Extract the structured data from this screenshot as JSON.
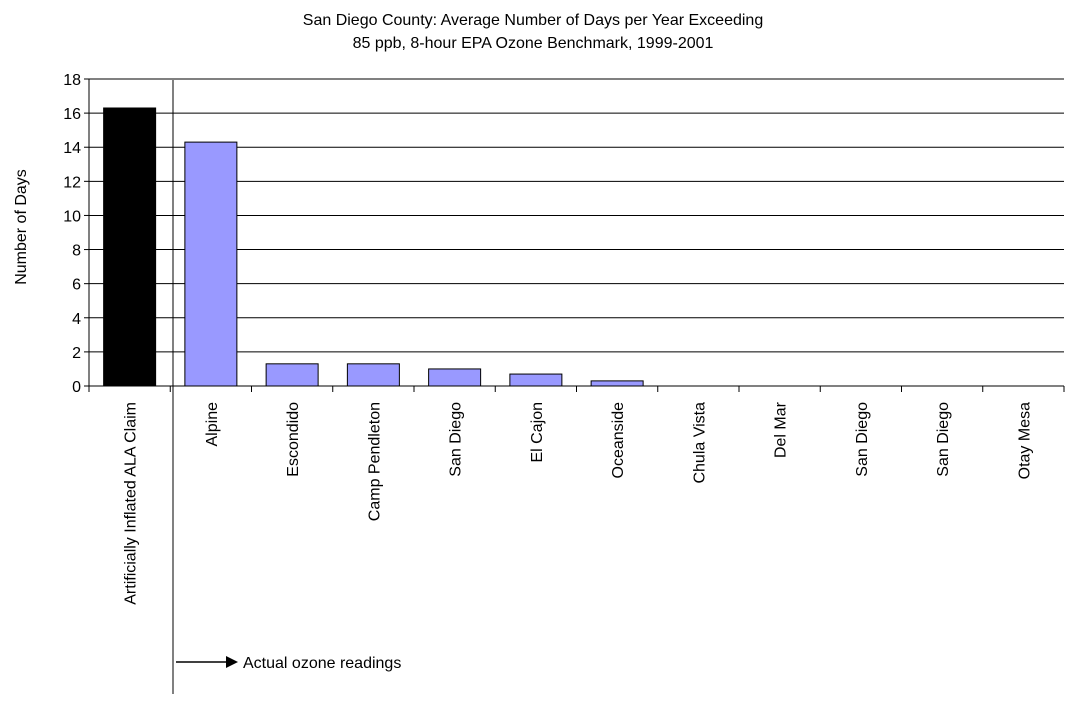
{
  "chart_data": {
    "type": "bar",
    "title_line1": "San Diego County: Average Number of Days per Year Exceeding",
    "title_line2": "85 ppb, 8-hour EPA Ozone Benchmark, 1999-2001",
    "xlabel": "",
    "ylabel": "Number of Days",
    "ylim": [
      0,
      18
    ],
    "yticks": [
      "0",
      "2",
      "4",
      "6",
      "8",
      "10",
      "12",
      "14",
      "16",
      "18"
    ],
    "grid": true,
    "legend": "none",
    "categories": [
      "Artificially Inflated ALA Claim",
      "Alpine",
      "Escondido",
      "Camp Pendleton",
      "San Diego",
      "El Cajon",
      "Oceanside",
      "Chula Vista",
      "Del Mar",
      "San Diego",
      "San Diego",
      "Otay Mesa"
    ],
    "values": [
      16.3,
      14.3,
      1.3,
      1.3,
      1.0,
      0.7,
      0.3,
      0,
      0,
      0,
      0,
      0
    ],
    "bar_colors": [
      "#000000",
      "#9999ff",
      "#9999ff",
      "#9999ff",
      "#9999ff",
      "#9999ff",
      "#9999ff",
      "#9999ff",
      "#9999ff",
      "#9999ff",
      "#9999ff",
      "#9999ff"
    ],
    "annotation": "Actual ozone readings"
  }
}
